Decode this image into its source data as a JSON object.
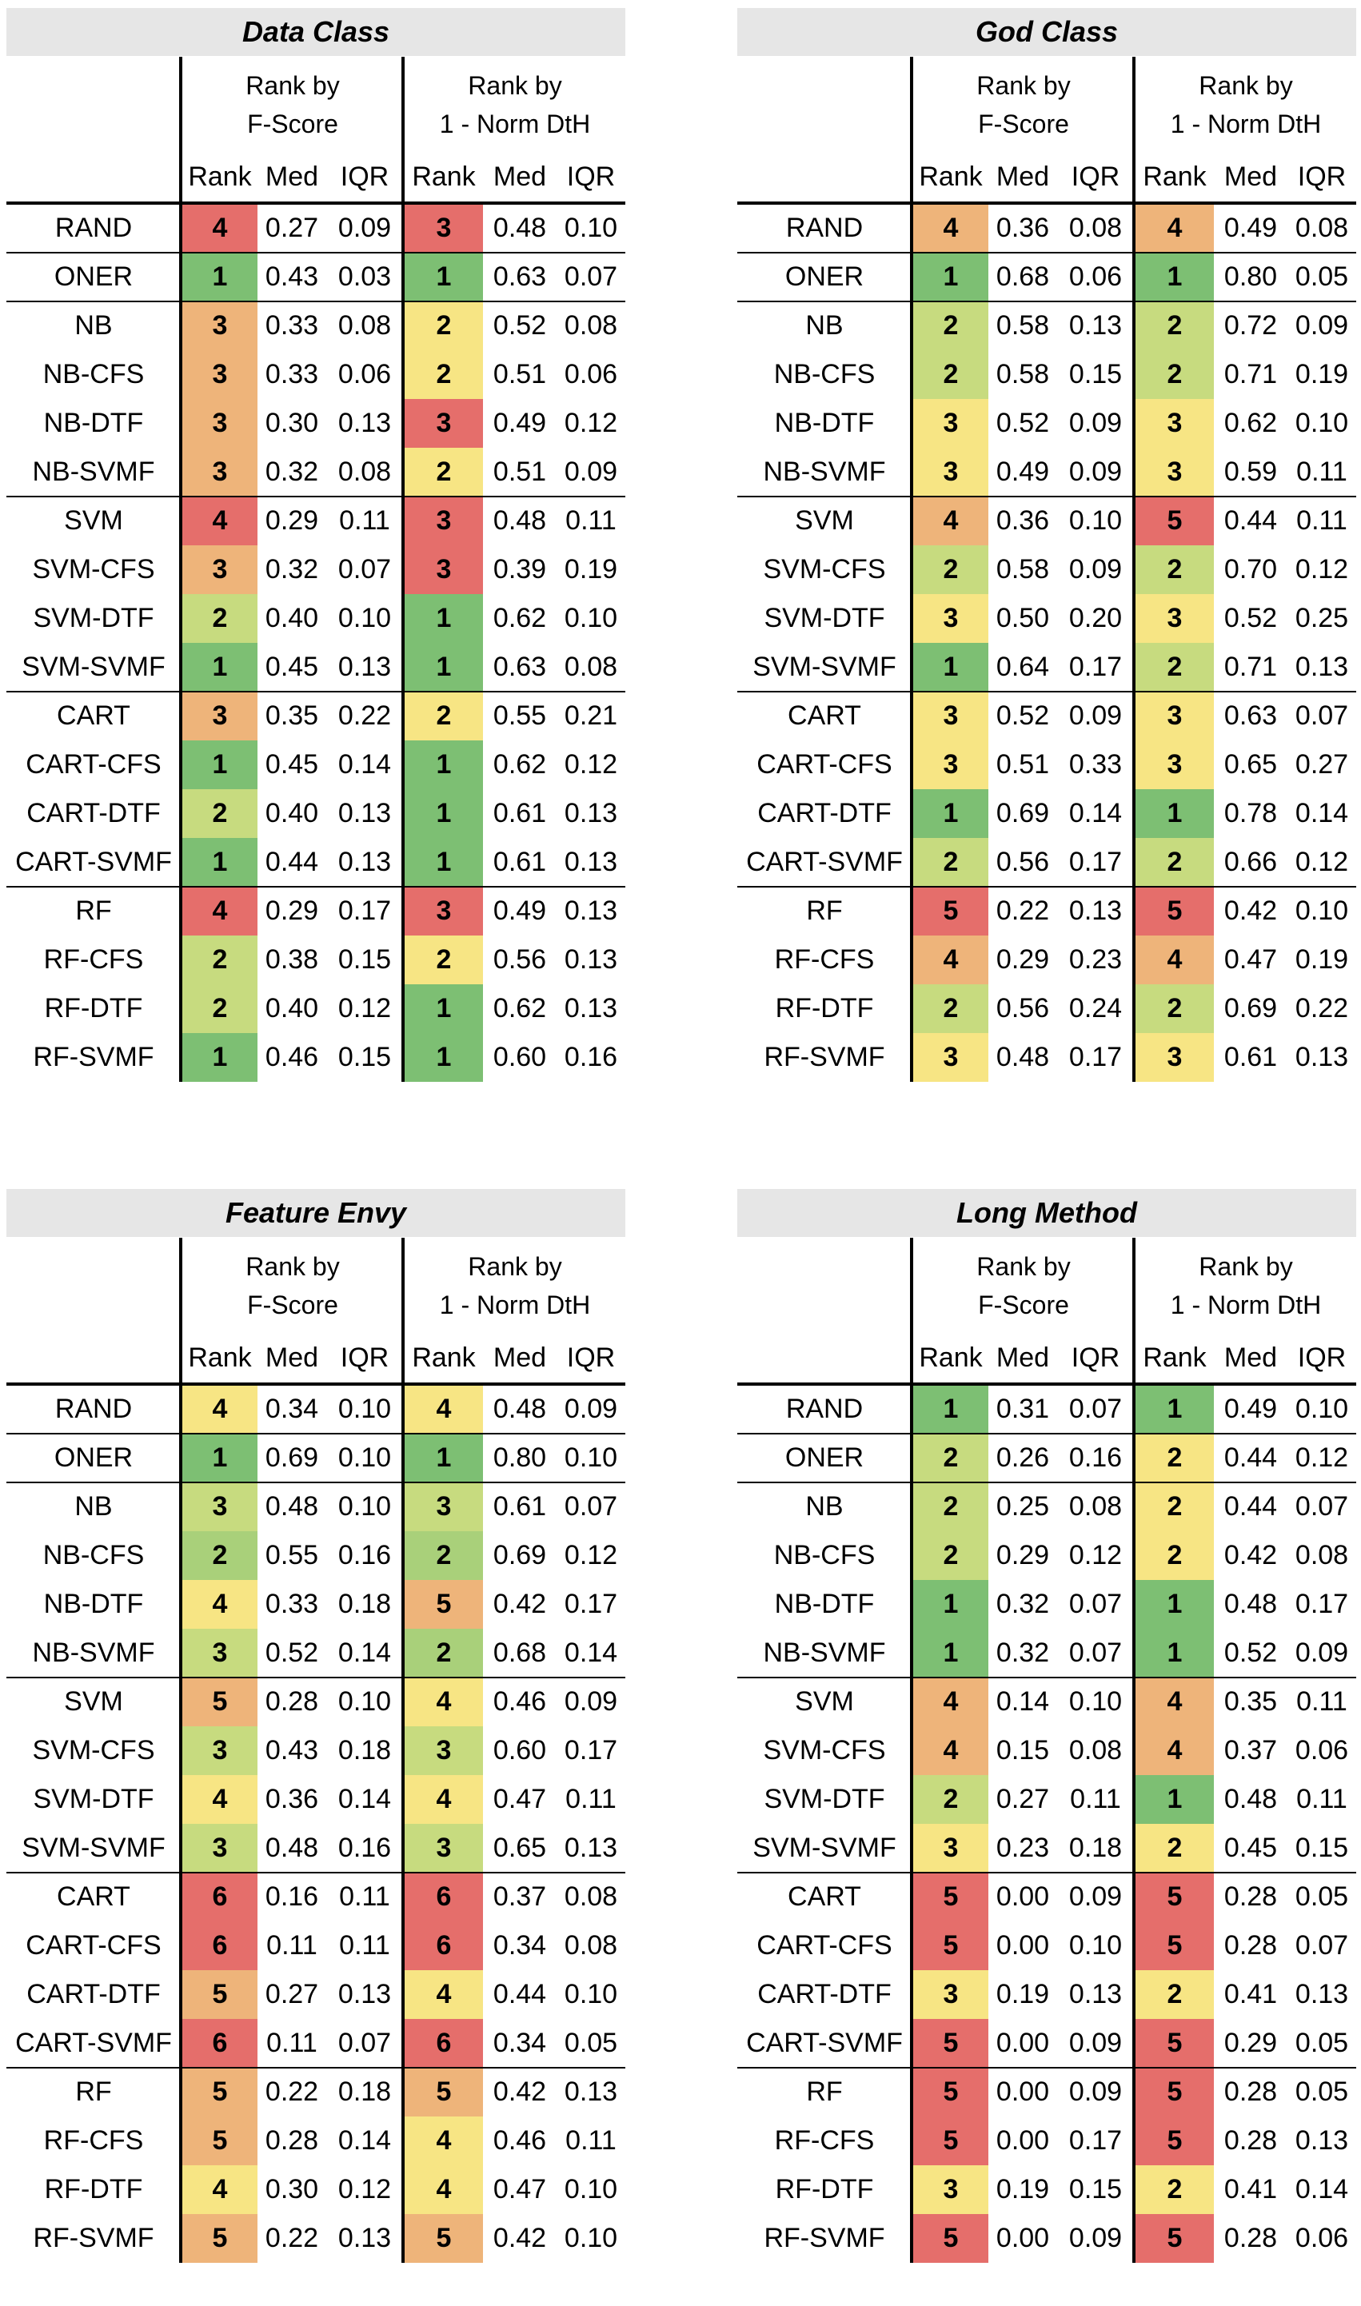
{
  "columns": {
    "group1": [
      "Rank by",
      "F-Score"
    ],
    "group2": [
      "Rank by",
      "1 - Norm DtH"
    ],
    "sub": [
      "Rank",
      "Med",
      "IQR",
      "Rank",
      "Med",
      "IQR"
    ]
  },
  "rank_colors": {
    "1": "#7dbf73",
    "2": "#c7db7f",
    "3": "#f7e584",
    "4": "#eeb47a",
    "5": "#e56e6b",
    "6": "#e56e6b"
  },
  "panels": [
    {
      "title": "Data Class",
      "rank_shades": {
        "1": "#7dbf73",
        "2": "#c7db7f",
        "3": "#eeb47a",
        "4": "#e56e6b"
      },
      "rank2_shades": {
        "1": "#7dbf73",
        "2": "#f7e584",
        "3": "#e56e6b"
      },
      "rows": [
        {
          "name": "RAND",
          "r1": "4",
          "m1": "0.27",
          "i1": "0.09",
          "r2": "3",
          "m2": "0.48",
          "i2": "0.10"
        },
        {
          "name": "ONER",
          "r1": "1",
          "m1": "0.43",
          "i1": "0.03",
          "r2": "1",
          "m2": "0.63",
          "i2": "0.07"
        },
        {
          "name": "NB",
          "r1": "3",
          "m1": "0.33",
          "i1": "0.08",
          "r2": "2",
          "m2": "0.52",
          "i2": "0.08"
        },
        {
          "name": "NB-CFS",
          "r1": "3",
          "m1": "0.33",
          "i1": "0.06",
          "r2": "2",
          "m2": "0.51",
          "i2": "0.06"
        },
        {
          "name": "NB-DTF",
          "r1": "3",
          "m1": "0.30",
          "i1": "0.13",
          "r2": "3",
          "m2": "0.49",
          "i2": "0.12"
        },
        {
          "name": "NB-SVMF",
          "r1": "3",
          "m1": "0.32",
          "i1": "0.08",
          "r2": "2",
          "m2": "0.51",
          "i2": "0.09"
        },
        {
          "name": "SVM",
          "r1": "4",
          "m1": "0.29",
          "i1": "0.11",
          "r2": "3",
          "m2": "0.48",
          "i2": "0.11"
        },
        {
          "name": "SVM-CFS",
          "r1": "3",
          "m1": "0.32",
          "i1": "0.07",
          "r2": "3",
          "m2": "0.39",
          "i2": "0.19"
        },
        {
          "name": "SVM-DTF",
          "r1": "2",
          "m1": "0.40",
          "i1": "0.10",
          "r2": "1",
          "m2": "0.62",
          "i2": "0.10"
        },
        {
          "name": "SVM-SVMF",
          "r1": "1",
          "m1": "0.45",
          "i1": "0.13",
          "r2": "1",
          "m2": "0.63",
          "i2": "0.08"
        },
        {
          "name": "CART",
          "r1": "3",
          "m1": "0.35",
          "i1": "0.22",
          "r2": "2",
          "m2": "0.55",
          "i2": "0.21"
        },
        {
          "name": "CART-CFS",
          "r1": "1",
          "m1": "0.45",
          "i1": "0.14",
          "r2": "1",
          "m2": "0.62",
          "i2": "0.12"
        },
        {
          "name": "CART-DTF",
          "r1": "2",
          "m1": "0.40",
          "i1": "0.13",
          "r2": "1",
          "m2": "0.61",
          "i2": "0.13"
        },
        {
          "name": "CART-SVMF",
          "r1": "1",
          "m1": "0.44",
          "i1": "0.13",
          "r2": "1",
          "m2": "0.61",
          "i2": "0.13"
        },
        {
          "name": "RF",
          "r1": "4",
          "m1": "0.29",
          "i1": "0.17",
          "r2": "3",
          "m2": "0.49",
          "i2": "0.13"
        },
        {
          "name": "RF-CFS",
          "r1": "2",
          "m1": "0.38",
          "i1": "0.15",
          "r2": "2",
          "m2": "0.56",
          "i2": "0.13"
        },
        {
          "name": "RF-DTF",
          "r1": "2",
          "m1": "0.40",
          "i1": "0.12",
          "r2": "1",
          "m2": "0.62",
          "i2": "0.13"
        },
        {
          "name": "RF-SVMF",
          "r1": "1",
          "m1": "0.46",
          "i1": "0.15",
          "r2": "1",
          "m2": "0.60",
          "i2": "0.16"
        }
      ]
    },
    {
      "title": "God Class",
      "rank_shades": {
        "1": "#7dbf73",
        "2": "#c7db7f",
        "3": "#f7e584",
        "4": "#eeb47a",
        "5": "#e56e6b"
      },
      "rank2_shades": {
        "1": "#7dbf73",
        "2": "#c7db7f",
        "3": "#f7e584",
        "4": "#eeb47a",
        "5": "#e56e6b"
      },
      "rows": [
        {
          "name": "RAND",
          "r1": "4",
          "m1": "0.36",
          "i1": "0.08",
          "r2": "4",
          "m2": "0.49",
          "i2": "0.08"
        },
        {
          "name": "ONER",
          "r1": "1",
          "m1": "0.68",
          "i1": "0.06",
          "r2": "1",
          "m2": "0.80",
          "i2": "0.05"
        },
        {
          "name": "NB",
          "r1": "2",
          "m1": "0.58",
          "i1": "0.13",
          "r2": "2",
          "m2": "0.72",
          "i2": "0.09"
        },
        {
          "name": "NB-CFS",
          "r1": "2",
          "m1": "0.58",
          "i1": "0.15",
          "r2": "2",
          "m2": "0.71",
          "i2": "0.19"
        },
        {
          "name": "NB-DTF",
          "r1": "3",
          "m1": "0.52",
          "i1": "0.09",
          "r2": "3",
          "m2": "0.62",
          "i2": "0.10"
        },
        {
          "name": "NB-SVMF",
          "r1": "3",
          "m1": "0.49",
          "i1": "0.09",
          "r2": "3",
          "m2": "0.59",
          "i2": "0.11"
        },
        {
          "name": "SVM",
          "r1": "4",
          "m1": "0.36",
          "i1": "0.10",
          "r2": "5",
          "m2": "0.44",
          "i2": "0.11"
        },
        {
          "name": "SVM-CFS",
          "r1": "2",
          "m1": "0.58",
          "i1": "0.09",
          "r2": "2",
          "m2": "0.70",
          "i2": "0.12"
        },
        {
          "name": "SVM-DTF",
          "r1": "3",
          "m1": "0.50",
          "i1": "0.20",
          "r2": "3",
          "m2": "0.52",
          "i2": "0.25"
        },
        {
          "name": "SVM-SVMF",
          "r1": "1",
          "m1": "0.64",
          "i1": "0.17",
          "r2": "2",
          "m2": "0.71",
          "i2": "0.13"
        },
        {
          "name": "CART",
          "r1": "3",
          "m1": "0.52",
          "i1": "0.09",
          "r2": "3",
          "m2": "0.63",
          "i2": "0.07"
        },
        {
          "name": "CART-CFS",
          "r1": "3",
          "m1": "0.51",
          "i1": "0.33",
          "r2": "3",
          "m2": "0.65",
          "i2": "0.27"
        },
        {
          "name": "CART-DTF",
          "r1": "1",
          "m1": "0.69",
          "i1": "0.14",
          "r2": "1",
          "m2": "0.78",
          "i2": "0.14"
        },
        {
          "name": "CART-SVMF",
          "r1": "2",
          "m1": "0.56",
          "i1": "0.17",
          "r2": "2",
          "m2": "0.66",
          "i2": "0.12"
        },
        {
          "name": "RF",
          "r1": "5",
          "m1": "0.22",
          "i1": "0.13",
          "r2": "5",
          "m2": "0.42",
          "i2": "0.10"
        },
        {
          "name": "RF-CFS",
          "r1": "4",
          "m1": "0.29",
          "i1": "0.23",
          "r2": "4",
          "m2": "0.47",
          "i2": "0.19"
        },
        {
          "name": "RF-DTF",
          "r1": "2",
          "m1": "0.56",
          "i1": "0.24",
          "r2": "2",
          "m2": "0.69",
          "i2": "0.22"
        },
        {
          "name": "RF-SVMF",
          "r1": "3",
          "m1": "0.48",
          "i1": "0.17",
          "r2": "3",
          "m2": "0.61",
          "i2": "0.13"
        }
      ]
    },
    {
      "title": "Feature Envy",
      "rank_shades": {
        "1": "#7dbf73",
        "2": "#a9d07a",
        "3": "#c7db7f",
        "4": "#f7e584",
        "5": "#eeb47a",
        "6": "#e56e6b"
      },
      "rank2_shades": {
        "1": "#7dbf73",
        "2": "#a9d07a",
        "3": "#c7db7f",
        "4": "#f7e584",
        "5": "#eeb47a",
        "6": "#e56e6b"
      },
      "rows": [
        {
          "name": "RAND",
          "r1": "4",
          "m1": "0.34",
          "i1": "0.10",
          "r2": "4",
          "m2": "0.48",
          "i2": "0.09"
        },
        {
          "name": "ONER",
          "r1": "1",
          "m1": "0.69",
          "i1": "0.10",
          "r2": "1",
          "m2": "0.80",
          "i2": "0.10"
        },
        {
          "name": "NB",
          "r1": "3",
          "m1": "0.48",
          "i1": "0.10",
          "r2": "3",
          "m2": "0.61",
          "i2": "0.07"
        },
        {
          "name": "NB-CFS",
          "r1": "2",
          "m1": "0.55",
          "i1": "0.16",
          "r2": "2",
          "m2": "0.69",
          "i2": "0.12"
        },
        {
          "name": "NB-DTF",
          "r1": "4",
          "m1": "0.33",
          "i1": "0.18",
          "r2": "5",
          "m2": "0.42",
          "i2": "0.17"
        },
        {
          "name": "NB-SVMF",
          "r1": "3",
          "m1": "0.52",
          "i1": "0.14",
          "r2": "2",
          "m2": "0.68",
          "i2": "0.14"
        },
        {
          "name": "SVM",
          "r1": "5",
          "m1": "0.28",
          "i1": "0.10",
          "r2": "4",
          "m2": "0.46",
          "i2": "0.09"
        },
        {
          "name": "SVM-CFS",
          "r1": "3",
          "m1": "0.43",
          "i1": "0.18",
          "r2": "3",
          "m2": "0.60",
          "i2": "0.17"
        },
        {
          "name": "SVM-DTF",
          "r1": "4",
          "m1": "0.36",
          "i1": "0.14",
          "r2": "4",
          "m2": "0.47",
          "i2": "0.11"
        },
        {
          "name": "SVM-SVMF",
          "r1": "3",
          "m1": "0.48",
          "i1": "0.16",
          "r2": "3",
          "m2": "0.65",
          "i2": "0.13"
        },
        {
          "name": "CART",
          "r1": "6",
          "m1": "0.16",
          "i1": "0.11",
          "r2": "6",
          "m2": "0.37",
          "i2": "0.08"
        },
        {
          "name": "CART-CFS",
          "r1": "6",
          "m1": "0.11",
          "i1": "0.11",
          "r2": "6",
          "m2": "0.34",
          "i2": "0.08"
        },
        {
          "name": "CART-DTF",
          "r1": "5",
          "m1": "0.27",
          "i1": "0.13",
          "r2": "4",
          "m2": "0.44",
          "i2": "0.10"
        },
        {
          "name": "CART-SVMF",
          "r1": "6",
          "m1": "0.11",
          "i1": "0.07",
          "r2": "6",
          "m2": "0.34",
          "i2": "0.05"
        },
        {
          "name": "RF",
          "r1": "5",
          "m1": "0.22",
          "i1": "0.18",
          "r2": "5",
          "m2": "0.42",
          "i2": "0.13"
        },
        {
          "name": "RF-CFS",
          "r1": "5",
          "m1": "0.28",
          "i1": "0.14",
          "r2": "4",
          "m2": "0.46",
          "i2": "0.11"
        },
        {
          "name": "RF-DTF",
          "r1": "4",
          "m1": "0.30",
          "i1": "0.12",
          "r2": "4",
          "m2": "0.47",
          "i2": "0.10"
        },
        {
          "name": "RF-SVMF",
          "r1": "5",
          "m1": "0.22",
          "i1": "0.13",
          "r2": "5",
          "m2": "0.42",
          "i2": "0.10"
        }
      ]
    },
    {
      "title": "Long Method",
      "rank_shades": {
        "1": "#7dbf73",
        "2": "#c7db7f",
        "3": "#f7e584",
        "4": "#eeb47a",
        "5": "#e56e6b"
      },
      "rank2_shades": {
        "1": "#7dbf73",
        "2": "#f7e584",
        "4": "#eeb47a",
        "5": "#e56e6b"
      },
      "rows": [
        {
          "name": "RAND",
          "r1": "1",
          "m1": "0.31",
          "i1": "0.07",
          "r2": "1",
          "m2": "0.49",
          "i2": "0.10"
        },
        {
          "name": "ONER",
          "r1": "2",
          "m1": "0.26",
          "i1": "0.16",
          "r2": "2",
          "m2": "0.44",
          "i2": "0.12"
        },
        {
          "name": "NB",
          "r1": "2",
          "m1": "0.25",
          "i1": "0.08",
          "r2": "2",
          "m2": "0.44",
          "i2": "0.07"
        },
        {
          "name": "NB-CFS",
          "r1": "2",
          "m1": "0.29",
          "i1": "0.12",
          "r2": "2",
          "m2": "0.42",
          "i2": "0.08"
        },
        {
          "name": "NB-DTF",
          "r1": "1",
          "m1": "0.32",
          "i1": "0.07",
          "r2": "1",
          "m2": "0.48",
          "i2": "0.17"
        },
        {
          "name": "NB-SVMF",
          "r1": "1",
          "m1": "0.32",
          "i1": "0.07",
          "r2": "1",
          "m2": "0.52",
          "i2": "0.09"
        },
        {
          "name": "SVM",
          "r1": "4",
          "m1": "0.14",
          "i1": "0.10",
          "r2": "4",
          "m2": "0.35",
          "i2": "0.11"
        },
        {
          "name": "SVM-CFS",
          "r1": "4",
          "m1": "0.15",
          "i1": "0.08",
          "r2": "4",
          "m2": "0.37",
          "i2": "0.06"
        },
        {
          "name": "SVM-DTF",
          "r1": "2",
          "m1": "0.27",
          "i1": "0.11",
          "r2": "1",
          "m2": "0.48",
          "i2": "0.11"
        },
        {
          "name": "SVM-SVMF",
          "r1": "3",
          "m1": "0.23",
          "i1": "0.18",
          "r2": "2",
          "m2": "0.45",
          "i2": "0.15"
        },
        {
          "name": "CART",
          "r1": "5",
          "m1": "0.00",
          "i1": "0.09",
          "r2": "5",
          "m2": "0.28",
          "i2": "0.05"
        },
        {
          "name": "CART-CFS",
          "r1": "5",
          "m1": "0.00",
          "i1": "0.10",
          "r2": "5",
          "m2": "0.28",
          "i2": "0.07"
        },
        {
          "name": "CART-DTF",
          "r1": "3",
          "m1": "0.19",
          "i1": "0.13",
          "r2": "2",
          "m2": "0.41",
          "i2": "0.13"
        },
        {
          "name": "CART-SVMF",
          "r1": "5",
          "m1": "0.00",
          "i1": "0.09",
          "r2": "5",
          "m2": "0.29",
          "i2": "0.05"
        },
        {
          "name": "RF",
          "r1": "5",
          "m1": "0.00",
          "i1": "0.09",
          "r2": "5",
          "m2": "0.28",
          "i2": "0.05"
        },
        {
          "name": "RF-CFS",
          "r1": "5",
          "m1": "0.00",
          "i1": "0.17",
          "r2": "5",
          "m2": "0.28",
          "i2": "0.13"
        },
        {
          "name": "RF-DTF",
          "r1": "3",
          "m1": "0.19",
          "i1": "0.15",
          "r2": "2",
          "m2": "0.41",
          "i2": "0.14"
        },
        {
          "name": "RF-SVMF",
          "r1": "5",
          "m1": "0.00",
          "i1": "0.09",
          "r2": "5",
          "m2": "0.28",
          "i2": "0.06"
        }
      ]
    }
  ]
}
